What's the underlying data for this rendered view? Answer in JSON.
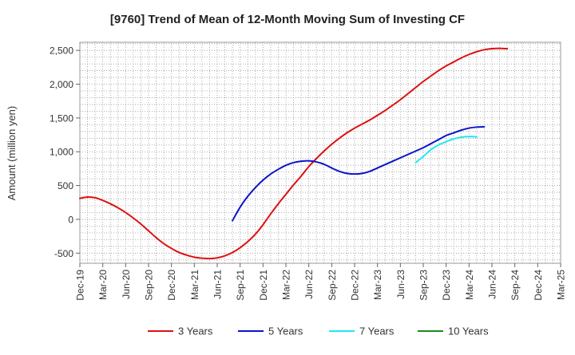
{
  "chart_data": {
    "type": "line",
    "title": "[9760]  Trend of Mean of 12-Month Moving Sum of Investing CF",
    "xlabel": "",
    "ylabel": "Amount (million yen)",
    "ylim": [
      -650,
      2620
    ],
    "yticks": [
      -500,
      0,
      500,
      1000,
      1500,
      2000,
      2500
    ],
    "ytick_labels": [
      "-500",
      "0",
      "500",
      "1,000",
      "1,500",
      "2,000",
      "2,500"
    ],
    "x_start": "Dec-19",
    "x_end": "Mar-25",
    "xtick_labels": [
      "Dec-19",
      "Mar-20",
      "Jun-20",
      "Sep-20",
      "Dec-20",
      "Mar-21",
      "Jun-21",
      "Sep-21",
      "Dec-21",
      "Mar-22",
      "Jun-22",
      "Sep-22",
      "Dec-22",
      "Mar-23",
      "Jun-23",
      "Sep-23",
      "Dec-23",
      "Mar-24",
      "Jun-24",
      "Sep-24",
      "Dec-24",
      "Mar-25"
    ],
    "grid": true,
    "legend_position": "bottom",
    "series": [
      {
        "name": "3 Years",
        "color": "#dd1111",
        "start": "Dec-19",
        "values": [
          310,
          330,
          320,
          280,
          230,
          170,
          100,
          20,
          -70,
          -170,
          -270,
          -360,
          -430,
          -490,
          -530,
          -560,
          -575,
          -580,
          -570,
          -540,
          -490,
          -420,
          -330,
          -220,
          -80,
          80,
          230,
          370,
          510,
          640,
          780,
          900,
          1010,
          1110,
          1200,
          1280,
          1350,
          1410,
          1470,
          1540,
          1610,
          1690,
          1770,
          1860,
          1950,
          2040,
          2120,
          2200,
          2270,
          2330,
          2390,
          2440,
          2480,
          2510,
          2525,
          2530,
          2525
        ]
      },
      {
        "name": "5 Years",
        "color": "#0a14c8",
        "start": "Aug-21",
        "values": [
          -20,
          180,
          340,
          470,
          580,
          670,
          740,
          800,
          840,
          860,
          865,
          850,
          815,
          760,
          710,
          680,
          670,
          680,
          710,
          760,
          810,
          860,
          910,
          960,
          1010,
          1060,
          1120,
          1180,
          1240,
          1280,
          1320,
          1350,
          1365,
          1370
        ]
      },
      {
        "name": "7 Years",
        "color": "#22e8f0",
        "start": "Aug-23",
        "values": [
          840,
          930,
          1030,
          1100,
          1150,
          1190,
          1215,
          1225,
          1220
        ]
      },
      {
        "name": "10 Years",
        "color": "#1a8a1a",
        "start": "Aug-23",
        "values": []
      }
    ]
  }
}
